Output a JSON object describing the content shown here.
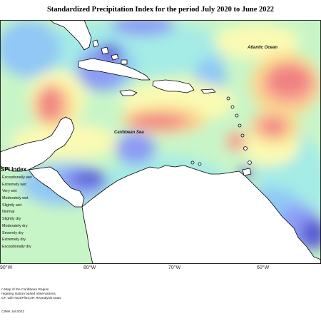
{
  "title": "Standardized Precipitation Index for the period July 2020 to June 2022",
  "labels": {
    "atlantic": "Atlantic Ocean",
    "caribbean": "Caribbean Sea"
  },
  "legend": {
    "title": "SPI Index",
    "items": [
      "Exceptionally wet",
      "Extremely wet",
      "Very wet",
      "Moderately wet",
      "Slightly wet",
      "Normal",
      "Slightly dry",
      "Moderately dry",
      "Severely dry",
      "Extremely dry",
      "Exceptionally dry"
    ]
  },
  "longitudes": [
    "90°W",
    "80°W",
    "70°W",
    "60°W"
  ],
  "notes": [
    "n Map of the Caribbean Region",
    "regating station based observations,",
    "CF, with NCEP/NCAR Reanalysis Data.",
    "CIMH Jul-2022"
  ],
  "colors": {
    "exceptionally_wet": "#5a5ad2",
    "very_wet": "#8c9cf5",
    "moderately_wet": "#91c8f5",
    "slightly_wet": "#a5ebe6",
    "normal": "#c8f5c8",
    "slightly_dry": "#fafab4",
    "moderately_dry": "#fadc8c",
    "severely_dry": "#fab496",
    "extremely_dry": "#f08282"
  }
}
